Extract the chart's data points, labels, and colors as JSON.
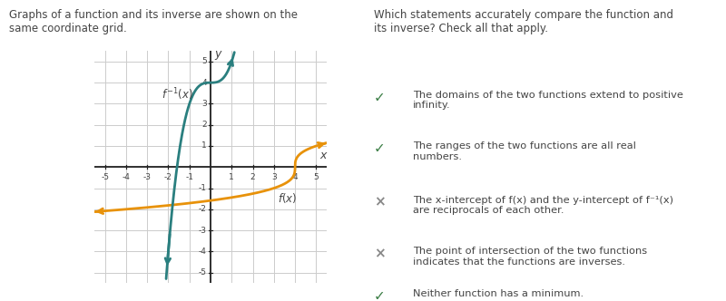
{
  "title_left": "Graphs of a function and its inverse are shown on the\nsame coordinate grid.",
  "title_right": "Which statements accurately compare the function and\nits inverse? Check all that apply.",
  "statements": [
    {
      "symbol": "✓",
      "sym_color": "#3a7d44",
      "text": "The domains of the two functions extend to positive\ninfinity."
    },
    {
      "symbol": "✓",
      "sym_color": "#3a7d44",
      "text": "The ranges of the two functions are all real\nnumbers."
    },
    {
      "symbol": "×",
      "sym_color": "#888888",
      "text": "The x-intercept of f(x) and the y-intercept of f⁻¹(x)\nare reciprocals of each other."
    },
    {
      "symbol": "×",
      "sym_color": "#888888",
      "text": "The point of intersection of the two functions\nindicates that the functions are inverses."
    },
    {
      "symbol": "✓",
      "sym_color": "#3a7d44",
      "text": "Neither function has a minimum."
    }
  ],
  "fx_color": "#e8920a",
  "inv_color": "#2a7f7f",
  "bg_color": "#ffffff",
  "grid_color": "#cccccc",
  "axis_color": "#222222",
  "text_color": "#444444",
  "xlim": [
    -5.5,
    5.5
  ],
  "ylim": [
    -5.5,
    5.5
  ],
  "xticks": [
    -5,
    -4,
    -3,
    -2,
    -1,
    1,
    2,
    3,
    4,
    5
  ],
  "yticks": [
    -5,
    -4,
    -3,
    -2,
    -1,
    1,
    2,
    3,
    4,
    5
  ]
}
